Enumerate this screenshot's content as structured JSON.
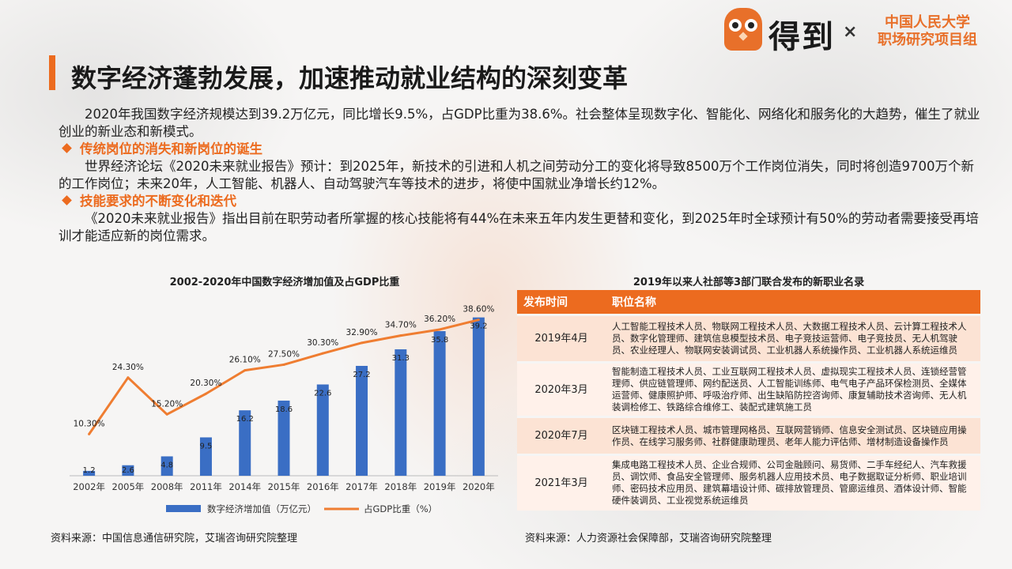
{
  "header": {
    "brand": "得到",
    "times": "×",
    "partner_line1": "中国人民大学",
    "partner_line2": "职场研究项目组"
  },
  "title": "数字经济蓬勃发展，加速推动就业结构的深刻变革",
  "paragraphs": {
    "p1": "2020年我国数字经济规模达到39.2万亿元，同比增长9.5%，占GDP比重为38.6%。社会整体呈现数字化、智能化、网络化和服务化的大趋势，催生了就业创业的新业态和新模式。",
    "bullet1": "传统岗位的消失和新岗位的诞生",
    "p2": "世界经济论坛《2020未来就业报告》预计：到2025年，新技术的引进和人机之间劳动分工的变化将导致8500万个工作岗位消失，同时将创造9700万个新的工作岗位；未来20年，人工智能、机器人、自动驾驶汽车等技术的进步，将使中国就业净增长约12%。",
    "bullet2": "技能要求的不断变化和迭代",
    "p3": "《2020未来就业报告》指出目前在职劳动者所掌握的核心技能将有44%在未来五年内发生更替和变化，到2025年时全球预计有50%的劳动者需要接受再培训才能适应新的岗位需求。"
  },
  "chart_data": {
    "type": "bar",
    "title": "2002-2020年中国数字经济增加值及占GDP比重",
    "categories": [
      "2002年",
      "2005年",
      "2008年",
      "2011年",
      "2014年",
      "2015年",
      "2016年",
      "2017年",
      "2018年",
      "2019年",
      "2020年"
    ],
    "series": [
      {
        "name": "数字经济增加值（万亿元）",
        "type": "bar",
        "values": [
          1.2,
          2.6,
          4.8,
          9.5,
          16.2,
          18.6,
          22.6,
          27.2,
          31.3,
          35.8,
          39.2
        ],
        "color": "#3a6ec4"
      },
      {
        "name": "占GDP比重（%）",
        "type": "line",
        "values": [
          10.3,
          24.3,
          15.2,
          20.3,
          26.1,
          27.5,
          30.3,
          32.9,
          34.7,
          36.2,
          38.6
        ],
        "labels": [
          "10.30%",
          "24.30%",
          "15.20%",
          "20.30%",
          "26.10%",
          "27.50%",
          "30.30%",
          "32.90%",
          "34.70%",
          "36.20%",
          "38.60%"
        ],
        "color": "#ef7d31"
      }
    ],
    "ylim_bar": [
      0,
      45
    ],
    "ylim_line": [
      0,
      45
    ],
    "grid": false,
    "legend": "bottom"
  },
  "source_left": "资料来源：中国信息通信研究院，艾瑞咨询研究院整理",
  "table": {
    "title": "2019年以来人社部等3部门联合发布的新职业名录",
    "headers": [
      "发布时间",
      "职位名称"
    ],
    "rows": [
      {
        "date": "2019年4月",
        "jobs": "人工智能工程技术人员、物联网工程技术人员、大数据工程技术人员、云计算工程技术人员、数字化管理师、建筑信息模型技术员、电子竞技运营师、电子竞技员、无人机驾驶员、农业经理人、物联网安装调试员、工业机器人系统操作员、工业机器人系统运维员"
      },
      {
        "date": "2020年3月",
        "jobs": "智能制造工程技术人员、工业互联网工程技术人员、虚拟现实工程技术人员、连锁经营管理师、供应链管理师、网约配送员、人工智能训练师、电气电子产品环保检测员、全媒体运营师、健康照护师、呼吸治疗师、出生缺陷防控咨询师、康复辅助技术咨询师、无人机装调检修工、铁路综合维修工、装配式建筑施工员"
      },
      {
        "date": "2020年7月",
        "jobs": "区块链工程技术人员、城市管理网格员、互联网营销师、信息安全测试员、区块链应用操作员、在线学习服务师、社群健康助理员、老年人能力评估师、增材制造设备操作员"
      },
      {
        "date": "2021年3月",
        "jobs": "集成电路工程技术人员、企业合规师、公司金融顾问、易货师、二手车经纪人、汽车救援员、调饮师、食品安全管理师、服务机器人应用技术员、电子数据取证分析师、职业培训师、密码技术应用员、建筑幕墙设计师、碳排放管理员、管廊运维员、酒体设计师、智能硬件装调员、工业视觉系统运维员"
      }
    ]
  },
  "source_right": "资料来源：人力资源社会保障部，艾瑞咨询研究院整理"
}
